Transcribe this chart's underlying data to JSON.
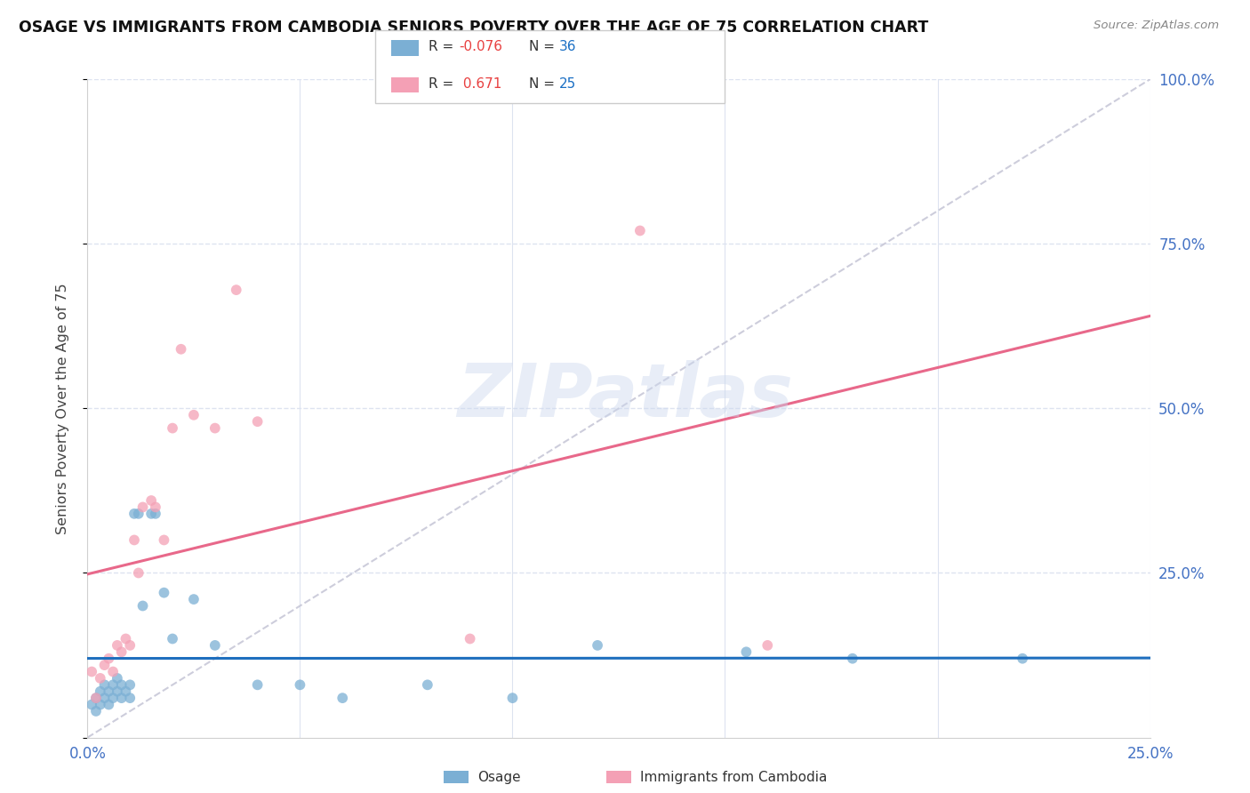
{
  "title": "OSAGE VS IMMIGRANTS FROM CAMBODIA SENIORS POVERTY OVER THE AGE OF 75 CORRELATION CHART",
  "source": "Source: ZipAtlas.com",
  "ylabel": "Seniors Poverty Over the Age of 75",
  "osage_color": "#7bafd4",
  "cambodia_color": "#f4a0b5",
  "osage_line_color": "#1f6fbe",
  "cambodia_line_color": "#e8688a",
  "diag_line_color": "#c8c8d8",
  "R_osage": -0.076,
  "N_osage": 36,
  "R_cambodia": 0.671,
  "N_cambodia": 25,
  "background_color": "#ffffff",
  "grid_color": "#dde3f0",
  "marker_size": 72,
  "marker_alpha": 0.75,
  "osage_x": [
    0.001,
    0.002,
    0.002,
    0.003,
    0.003,
    0.004,
    0.004,
    0.005,
    0.005,
    0.006,
    0.006,
    0.007,
    0.007,
    0.008,
    0.008,
    0.009,
    0.01,
    0.01,
    0.011,
    0.012,
    0.013,
    0.015,
    0.016,
    0.018,
    0.02,
    0.025,
    0.03,
    0.04,
    0.05,
    0.06,
    0.08,
    0.1,
    0.12,
    0.155,
    0.18,
    0.22
  ],
  "osage_y": [
    0.05,
    0.04,
    0.06,
    0.05,
    0.07,
    0.06,
    0.08,
    0.05,
    0.07,
    0.06,
    0.08,
    0.07,
    0.09,
    0.06,
    0.08,
    0.07,
    0.06,
    0.08,
    0.34,
    0.34,
    0.2,
    0.34,
    0.34,
    0.22,
    0.15,
    0.21,
    0.14,
    0.08,
    0.08,
    0.06,
    0.08,
    0.06,
    0.14,
    0.13,
    0.12,
    0.12
  ],
  "cambodia_x": [
    0.001,
    0.002,
    0.003,
    0.004,
    0.005,
    0.006,
    0.007,
    0.008,
    0.009,
    0.01,
    0.011,
    0.012,
    0.013,
    0.015,
    0.016,
    0.018,
    0.02,
    0.022,
    0.025,
    0.03,
    0.035,
    0.04,
    0.09,
    0.13,
    0.16
  ],
  "cambodia_y": [
    0.1,
    0.06,
    0.09,
    0.11,
    0.12,
    0.1,
    0.14,
    0.13,
    0.15,
    0.14,
    0.3,
    0.25,
    0.35,
    0.36,
    0.35,
    0.3,
    0.47,
    0.59,
    0.49,
    0.47,
    0.68,
    0.48,
    0.15,
    0.77,
    0.14
  ],
  "xlim": [
    0.0,
    0.25
  ],
  "ylim": [
    0.0,
    1.0
  ],
  "yticks": [
    0.0,
    0.25,
    0.5,
    0.75,
    1.0
  ],
  "ytick_labels": [
    "",
    "25.0%",
    "50.0%",
    "75.0%",
    "100.0%"
  ],
  "xticks": [
    0.0,
    0.05,
    0.1,
    0.15,
    0.2,
    0.25
  ],
  "xtick_labels": [
    "0.0%",
    "",
    "",
    "",
    "",
    "25.0%"
  ]
}
